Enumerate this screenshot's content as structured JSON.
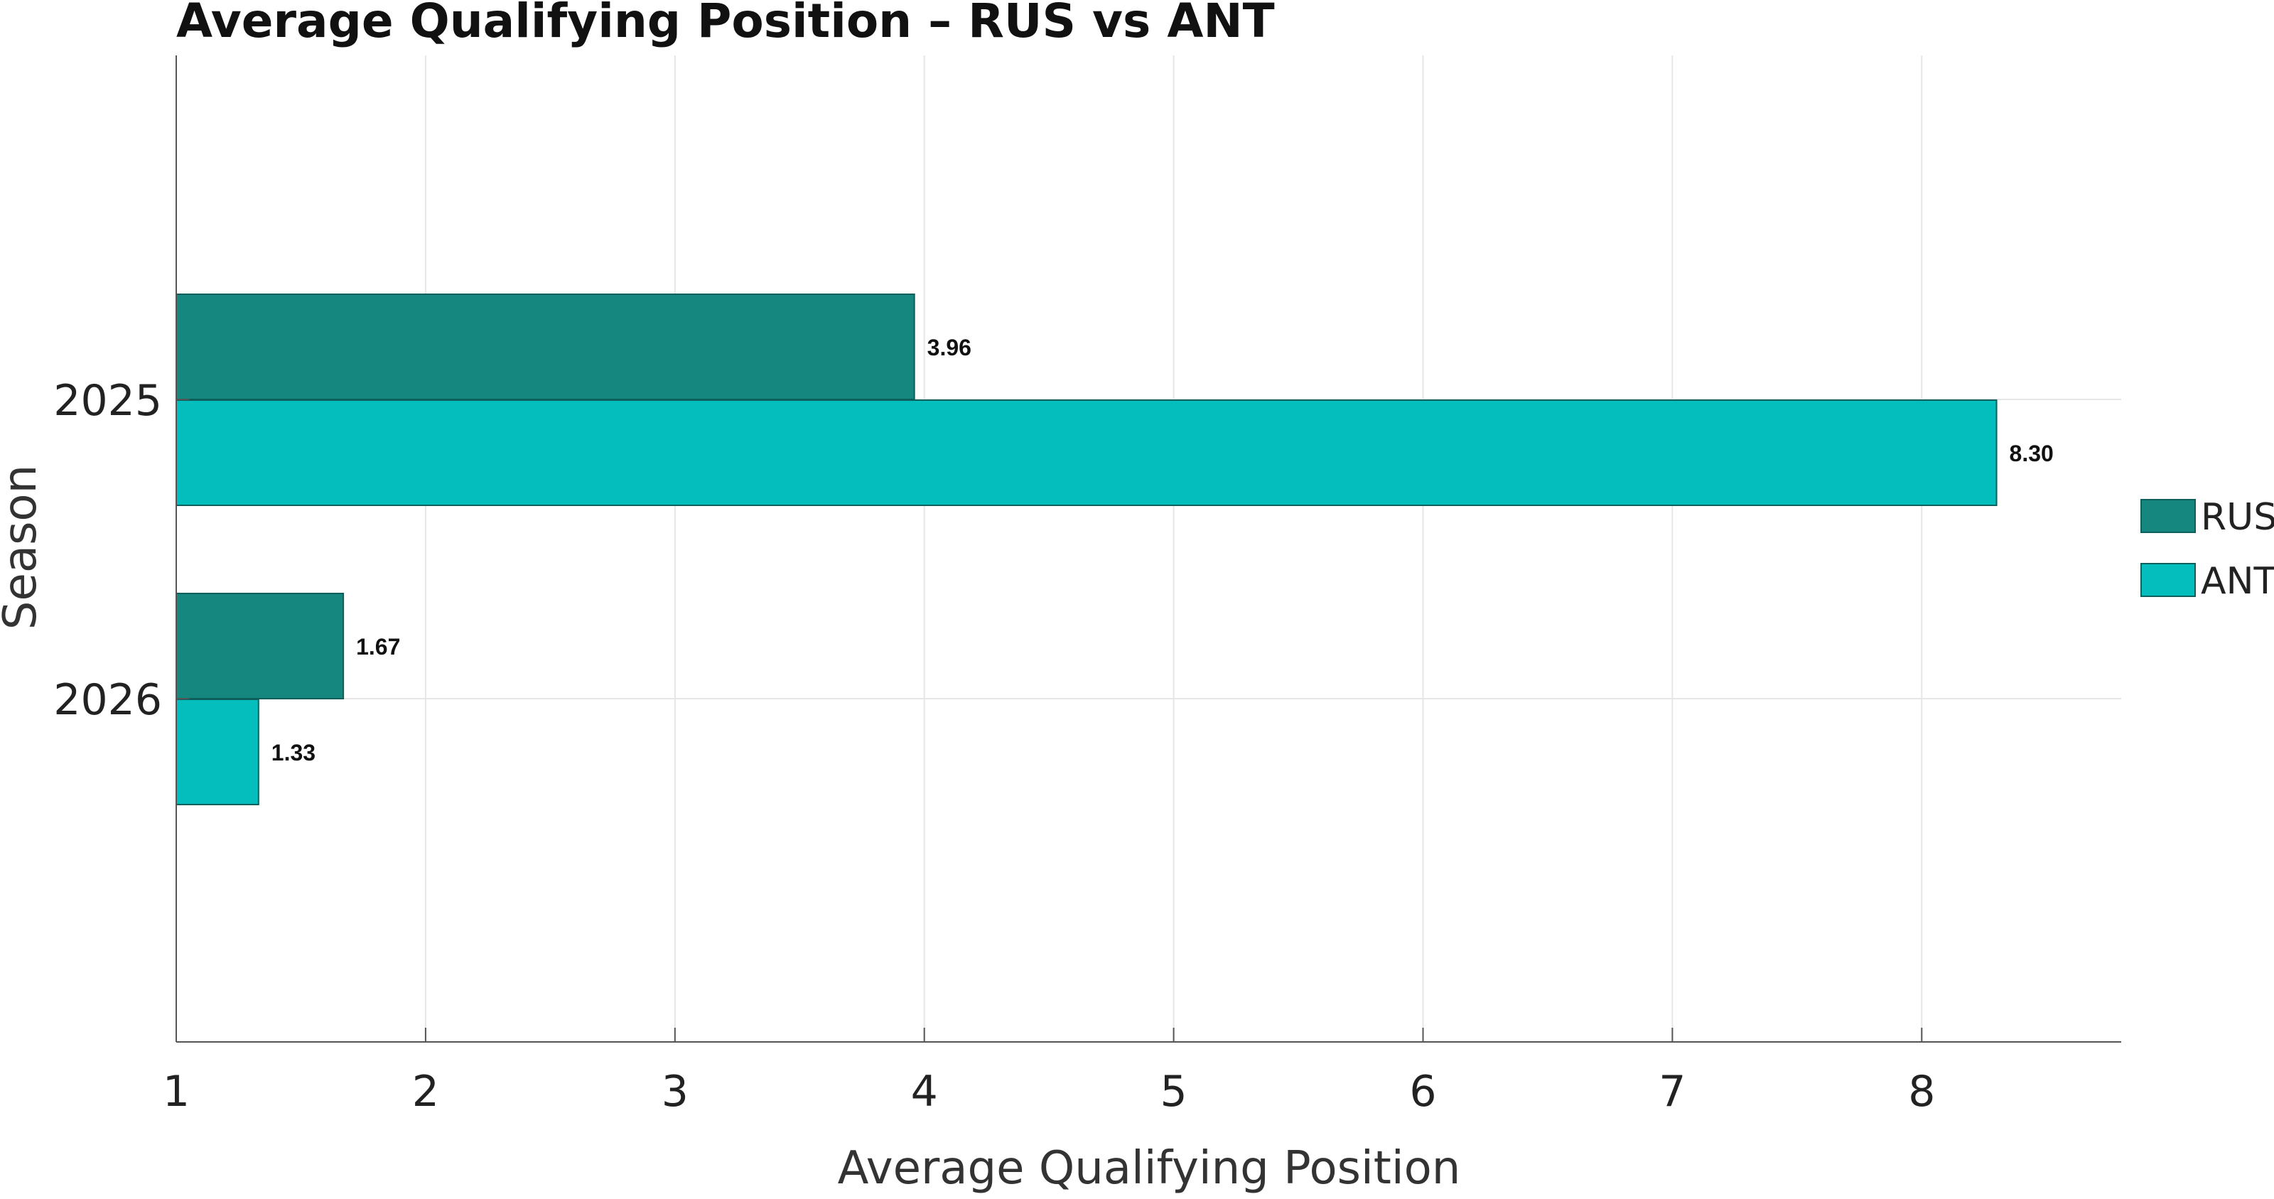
{
  "chart_data": {
    "type": "bar",
    "orientation": "horizontal",
    "title": "Average Qualifying Position – RUS vs ANT",
    "xlabel": "Average Qualifying Position",
    "ylabel": "Season",
    "categories": [
      "2025",
      "2026"
    ],
    "xlim": [
      1,
      8.8
    ],
    "xticks": [
      1,
      2,
      3,
      4,
      5,
      6,
      7,
      8
    ],
    "xtick_labels": [
      "1",
      "2",
      "3",
      "4",
      "5",
      "6",
      "7",
      "8"
    ],
    "grid": true,
    "legend": "right",
    "series": [
      {
        "name": "RUS",
        "values": [
          3.96,
          1.67
        ],
        "value_labels": [
          "3.96",
          "1.67"
        ],
        "color": "#15877f"
      },
      {
        "name": "ANT",
        "values": [
          8.3,
          1.33
        ],
        "value_labels": [
          "8.30",
          "1.33"
        ],
        "color": "#04bdbd"
      }
    ]
  }
}
